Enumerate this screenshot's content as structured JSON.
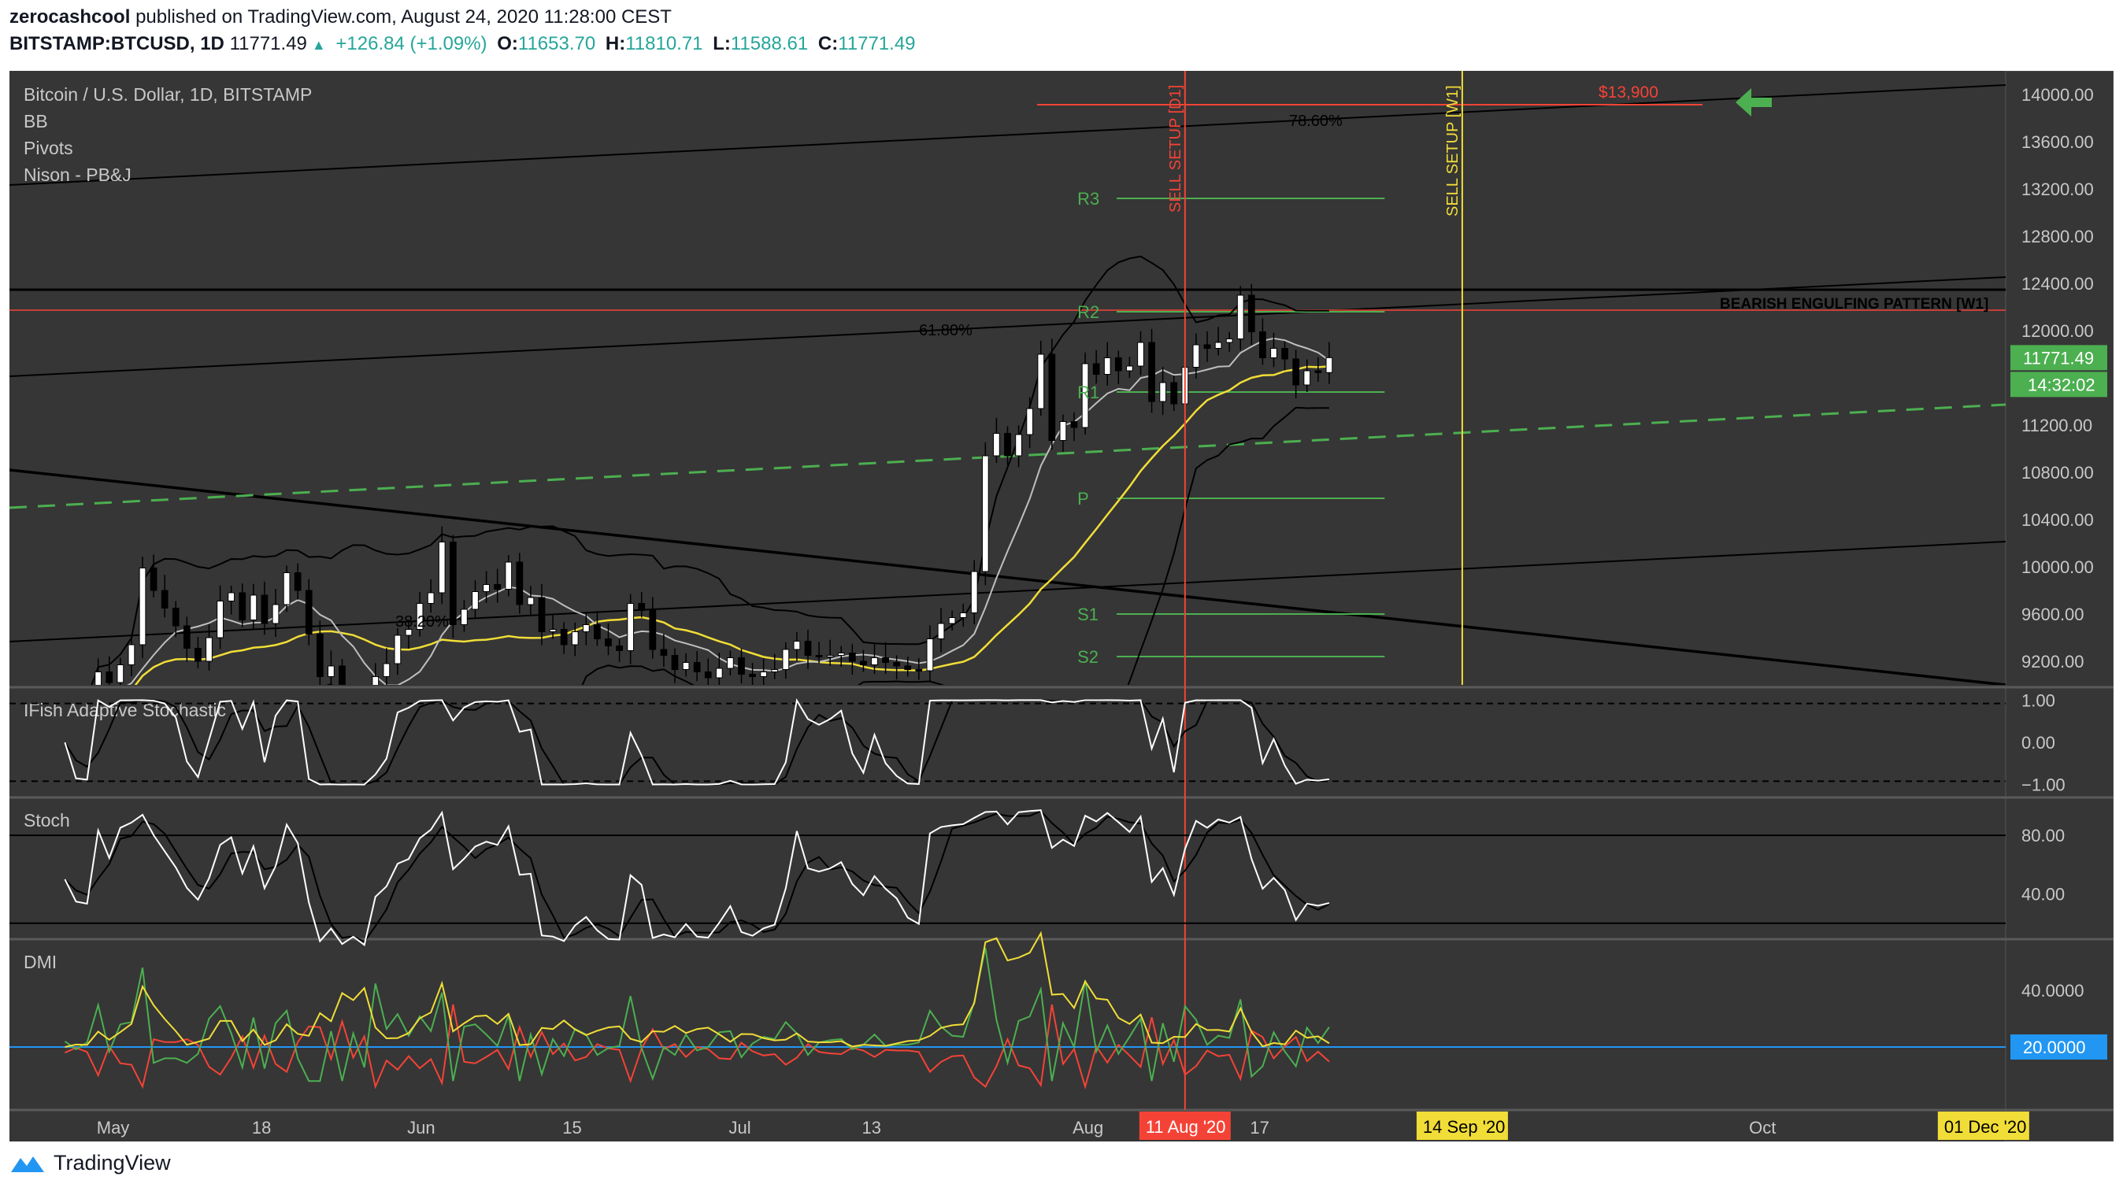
{
  "header": {
    "author": "zerocashcool",
    "published_text": "published on TradingView.com, August 24, 2020 11:28:00 CEST",
    "symbol": "BITSTAMP:BTCUSD, 1D",
    "last": "11771.49",
    "change": "+126.84 (+1.09%)",
    "o_label": "O:",
    "o": "11653.70",
    "h_label": "H:",
    "h": "11810.71",
    "l_label": "L:",
    "l": "11588.61",
    "c_label": "C:",
    "c": "11771.49"
  },
  "footer": {
    "brand": "TradingView"
  },
  "colors": {
    "bg": "#363636",
    "text": "#c8c8c8",
    "green": "#4caf50",
    "red": "#f44336",
    "yellow": "#f1dd37",
    "blue": "#2196f3",
    "candle_up": "#ffffff",
    "candle_down": "#000000"
  },
  "chart_data": {
    "type": "candlestick",
    "legend": [
      "Bitcoin / U.S. Dollar, 1D, BITSTAMP",
      "BB",
      "Pivots",
      "Nison - PB&J"
    ],
    "y_ticks": [
      "14000.00",
      "13600.00",
      "13200.00",
      "12800.00",
      "12400.00",
      "12000.00",
      "11600.00",
      "11200.00",
      "10800.00",
      "10400.00",
      "10000.00",
      "9600.00",
      "9200.00"
    ],
    "ylim": [
      9000,
      14200
    ],
    "x_ticks": [
      {
        "label": "May",
        "day": 4
      },
      {
        "label": "18",
        "day": 18
      },
      {
        "label": "Jun",
        "day": 32
      },
      {
        "label": "15",
        "day": 46
      },
      {
        "label": "Jul",
        "day": 61
      },
      {
        "label": "13",
        "day": 73
      },
      {
        "label": "Aug",
        "day": 92
      },
      {
        "label": "17",
        "day": 108
      },
      {
        "label": "Sep",
        "day": 123
      },
      {
        "label": "Oct",
        "day": 153
      }
    ],
    "x_badges": [
      {
        "label": "11 Aug '20",
        "day": 101,
        "color": "#f44336"
      },
      {
        "label": "14 Sep '20",
        "day": 126,
        "color": "#f1dd37"
      },
      {
        "label": "01 Dec '20",
        "day": 173,
        "color": "#f1dd37"
      }
    ],
    "x_range_days": [
      -5,
      175
    ],
    "closes": [
      8870,
      8800,
      8790,
      9110,
      9020,
      9170,
      9340,
      9990,
      9800,
      9650,
      9500,
      9310,
      9200,
      9400,
      9710,
      9780,
      9550,
      9760,
      9520,
      9680,
      9950,
      9800,
      9430,
      9070,
      9160,
      8720,
      8790,
      8560,
      9070,
      9180,
      9420,
      9470,
      9690,
      9780,
      10210,
      9510,
      9640,
      9790,
      9850,
      9810,
      10040,
      9680,
      9740,
      9450,
      9470,
      9340,
      9450,
      9510,
      9390,
      9330,
      9290,
      9690,
      9630,
      9300,
      9250,
      9130,
      9190,
      9110,
      9060,
      9140,
      9230,
      9090,
      9070,
      9110,
      9130,
      9300,
      9370,
      9250,
      9240,
      9250,
      9270,
      9200,
      9170,
      9230,
      9190,
      9160,
      9130,
      9120,
      9390,
      9520,
      9570,
      9610,
      9960,
      10940,
      11130,
      10940,
      11120,
      11340,
      11800,
      11070,
      11230,
      11180,
      11720,
      11630,
      11770,
      11660,
      11700,
      11900,
      11400,
      11560,
      11380,
      11690,
      11880,
      11850,
      11900,
      11930,
      12300,
      11990,
      11770,
      11850,
      11760,
      11540,
      11660,
      11645,
      11771
    ],
    "last_day": 114,
    "price_label": "11771.49",
    "countdown": "14:32:02",
    "pivots": {
      "R3": "R3",
      "R2": "R2",
      "R1": "R1",
      "P": "P",
      "S1": "S1",
      "S2": "S2"
    },
    "pivot_values": {
      "R3": 13120,
      "R2": 12160,
      "R1": 11480,
      "P": 10580,
      "S1": 9600,
      "S2": 9240
    },
    "fib_labels": [
      "78.60%",
      "61.80%",
      "38.20%"
    ],
    "annotations": {
      "sell_red": "SELL SETUP [D1]",
      "sell_yellow": "SELL SETUP [W1]",
      "pattern": "BEARISH ENGULFING PATTERN [W1]",
      "target": "$13,900"
    },
    "panes": [
      {
        "name": "IFish Adaptive Stochastic",
        "ticks": [
          "1.00",
          "0.00",
          "−1.00"
        ]
      },
      {
        "name": "Stoch",
        "ticks": [
          "80.00",
          "40.00"
        ]
      },
      {
        "name": "DMI",
        "ticks": [
          "40.0000",
          "20.0000"
        ]
      }
    ]
  }
}
